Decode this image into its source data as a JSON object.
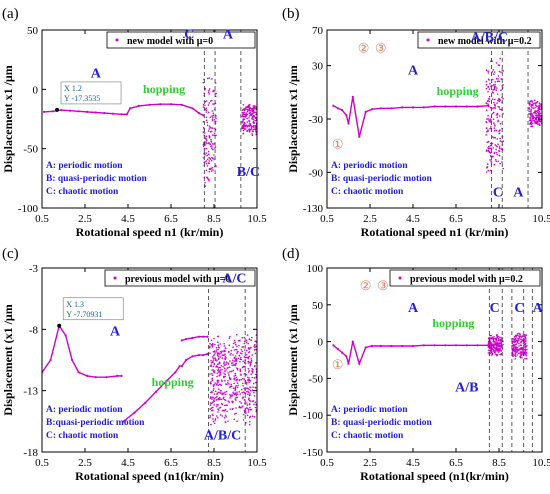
{
  "figure": {
    "colors": {
      "series": "#cc00cc",
      "region": "#1f1fd6",
      "hop": "#33cc33",
      "annot": "#e07a5f",
      "tip": "#1a5fa8",
      "axis": "#000000"
    }
  },
  "chart_data": [
    {
      "type": "scatter",
      "panel_label": "(a)",
      "legend": "new model with μ=0",
      "xlabel": "Rotational speed n1 (kr/min)",
      "ylabel": "Displacement x1 /μm",
      "xlim": [
        0.5,
        10.5
      ],
      "ylim": [
        -100,
        50
      ],
      "xticks": [
        "0.5",
        "2.5",
        "4.5",
        "6.5",
        "8.5",
        "10.5"
      ],
      "yticks": [
        "-100",
        "-50",
        "0",
        "50"
      ],
      "series": [
        {
          "values_note": "",
          "x": [
            0.6,
            1.0,
            1.4,
            1.8,
            2.2,
            2.6,
            3.0,
            3.4,
            3.8,
            4.2,
            4.45,
            4.6,
            5.0,
            5.5,
            6.0,
            6.5,
            7.0,
            7.5,
            7.8,
            8.0
          ],
          "y": [
            -19,
            -18.5,
            -17.5,
            -18,
            -18.5,
            -19,
            -19.5,
            -20,
            -20.5,
            -21,
            -21,
            -16,
            -14,
            -13,
            -12.5,
            -12.5,
            -13,
            -16,
            -20,
            -22
          ]
        }
      ],
      "datatip": {
        "x_label": "X 1.2",
        "y_label": "Y -17.3535",
        "x": 1.2,
        "y": -17.3535
      },
      "vlines": [
        8.05,
        8.55,
        9.75
      ],
      "bands": [
        [
          8.0,
          8.6,
          -85,
          15
        ],
        [
          9.8,
          10.5,
          -40,
          -10
        ]
      ],
      "labels": [
        {
          "text": "A",
          "x": 3.0,
          "y": 10
        },
        {
          "text": "C",
          "x": 7.35,
          "y": 43
        },
        {
          "text": "A",
          "x": 9.15,
          "y": 43
        },
        {
          "text": "B/C",
          "x": 10.1,
          "y": -73
        }
      ],
      "hopping": {
        "text": "hopping",
        "x": 5.2,
        "y": -3
      },
      "motion_legend": [
        "A: periodic motion",
        "B: quasi-periodic motion",
        "C: chaotic motion"
      ]
    },
    {
      "type": "scatter",
      "panel_label": "(b)",
      "legend": "new model with μ=0.2",
      "xlabel": "Rotational speed n1 (kr/min)",
      "ylabel": "Displacement x1 /μm",
      "xlim": [
        0.5,
        10.5
      ],
      "ylim": [
        -130,
        70
      ],
      "xticks": [
        "0.5",
        "2.5",
        "4.5",
        "6.5",
        "8.5",
        "10.5"
      ],
      "yticks": [
        "-130",
        "-90",
        "-30",
        "30",
        "70"
      ],
      "series": [
        {
          "values_note": "",
          "x": [
            0.8,
            1.0,
            1.2,
            1.4,
            1.5,
            1.7,
            2.0,
            2.3,
            2.6,
            3.0,
            3.5,
            4.0,
            4.5,
            5.0,
            5.5,
            6.0,
            6.5,
            7.0,
            7.5,
            8.0
          ],
          "y": [
            -15,
            -18,
            -20,
            -26,
            -35,
            -5,
            -50,
            -22,
            -19,
            -18,
            -18,
            -17,
            -17,
            -17,
            -16,
            -16,
            -16,
            -16,
            -16,
            -15
          ]
        }
      ],
      "vlines": [
        8.15,
        8.65,
        9.85
      ],
      "bands": [
        [
          7.9,
          8.7,
          -95,
          45
        ],
        [
          9.9,
          10.5,
          -40,
          -8
        ]
      ],
      "labels": [
        {
          "text": "A",
          "x": 4.5,
          "y": 20
        },
        {
          "text": "A/B/C",
          "x": 8.05,
          "y": 57
        },
        {
          "text": "C",
          "x": 8.45,
          "y": -117
        },
        {
          "text": "A",
          "x": 9.4,
          "y": -117
        }
      ],
      "circled": [
        {
          "text": "①",
          "x": 1.0,
          "y": -63
        },
        {
          "text": "②",
          "x": 2.2,
          "y": 45
        },
        {
          "text": "③",
          "x": 3.0,
          "y": 45
        }
      ],
      "hopping": {
        "text": "hopping",
        "x": 5.6,
        "y": -3
      },
      "motion_legend": [
        "A: periodic motion",
        "B: quasi-periodic motion",
        "C: chaotic motion"
      ]
    },
    {
      "type": "scatter",
      "panel_label": "(c)",
      "legend": "previous model with μ=0",
      "xlabel": "Rotational speed (n1(kr/min)",
      "ylabel": "Displacement (x1 /μm",
      "xlim": [
        0.5,
        10.5
      ],
      "ylim": [
        -18,
        -3
      ],
      "xticks": [
        "0.5",
        "2.5",
        "4.5",
        "6.5",
        "8.5",
        "10.5"
      ],
      "yticks": [
        "-18",
        "-13",
        "-8",
        "-3"
      ],
      "series": [
        {
          "values_note": "",
          "x": [
            0.5,
            0.9,
            1.3,
            1.6,
            1.9,
            2.2,
            2.6,
            3.0,
            3.5,
            4.0,
            4.2
          ],
          "y": [
            -11.5,
            -10.5,
            -7.7,
            -8.5,
            -10.5,
            -11.5,
            -11.8,
            -11.9,
            -11.9,
            -11.8,
            -11.8
          ]
        },
        {
          "values_note": "",
          "x": [
            4.3,
            4.8,
            5.3,
            5.8,
            6.3,
            6.7,
            6.9
          ],
          "y": [
            -15.5,
            -14.8,
            -14,
            -13.1,
            -12.2,
            -11.5,
            -11
          ]
        },
        {
          "values_note": "",
          "x": [
            7.0,
            7.2,
            7.5,
            7.8,
            8.0,
            8.2
          ],
          "y": [
            -11.0,
            -10.5,
            -10.2,
            -10.1,
            -10.1,
            -10.0
          ]
        },
        {
          "values_note": "",
          "x": [
            7.0,
            7.2,
            7.5,
            7.8,
            8.0,
            8.2
          ],
          "y": [
            -8.9,
            -8.8,
            -8.7,
            -8.6,
            -8.6,
            -8.6
          ]
        }
      ],
      "datatip": {
        "x_label": "X 1.3",
        "y_label": "Y -7.70931",
        "x": 1.3,
        "y": -7.70931
      },
      "vlines": [
        8.25,
        9.95
      ],
      "bands": [
        [
          8.3,
          10.5,
          -16,
          -8
        ]
      ],
      "labels": [
        {
          "text": "A",
          "x": 3.9,
          "y": -8.5
        },
        {
          "text": "A/C",
          "x": 9.45,
          "y": -4.2
        },
        {
          "text": "A/B/C",
          "x": 8.9,
          "y": -17.0
        }
      ],
      "hopping": {
        "text": "hopping",
        "x": 5.6,
        "y": -12.6
      },
      "motion_legend": [
        "A: periodic motion",
        "B:quasi-periodic motion",
        "C: chaotic motion"
      ]
    },
    {
      "type": "scatter",
      "panel_label": "(d)",
      "legend": "previous model with μ=0.2",
      "xlabel": "Rotational speed (n1(kr/min)",
      "ylabel": "Displacement (x1 /μm",
      "xlim": [
        0.5,
        10.5
      ],
      "ylim": [
        -150,
        100
      ],
      "xticks": [
        "0.5",
        "2.5",
        "4.5",
        "6.5",
        "8.5",
        "10.5"
      ],
      "yticks": [
        "-150",
        "-100",
        "-50",
        "0",
        "50",
        "100"
      ],
      "series": [
        {
          "values_note": "",
          "x": [
            0.8,
            1.0,
            1.2,
            1.4,
            1.5,
            1.7,
            2.0,
            2.3,
            2.6,
            3.0,
            3.5,
            4.0,
            4.5,
            5.0,
            5.5,
            6.0,
            6.5,
            7.0,
            7.5,
            8.0
          ],
          "y": [
            -5,
            -10,
            -15,
            -20,
            -30,
            0,
            -30,
            -8,
            -6,
            -6,
            -6,
            -6,
            -6,
            -5,
            -5,
            -5,
            -5,
            -5,
            -5,
            -5
          ]
        }
      ],
      "vlines": [
        8.05,
        8.65,
        9.1,
        9.65,
        10.05
      ],
      "bands": [
        [
          8.0,
          8.7,
          -20,
          10
        ],
        [
          9.1,
          9.8,
          -25,
          12
        ]
      ],
      "labels": [
        {
          "text": "A",
          "x": 4.5,
          "y": 40
        },
        {
          "text": "C",
          "x": 8.3,
          "y": 40
        },
        {
          "text": "C",
          "x": 9.45,
          "y": 40
        },
        {
          "text": "A",
          "x": 10.3,
          "y": 40
        },
        {
          "text": "A/B",
          "x": 7.0,
          "y": -68
        }
      ],
      "circled": [
        {
          "text": "①",
          "x": 1.0,
          "y": -37
        },
        {
          "text": "②",
          "x": 2.3,
          "y": 70
        },
        {
          "text": "③",
          "x": 3.1,
          "y": 70
        }
      ],
      "hopping": {
        "text": "hopping",
        "x": 5.4,
        "y": 20
      },
      "motion_legend": [
        "A: periodic motion",
        "B: quasi-periodic motion",
        "C: chaotic motion"
      ]
    }
  ]
}
